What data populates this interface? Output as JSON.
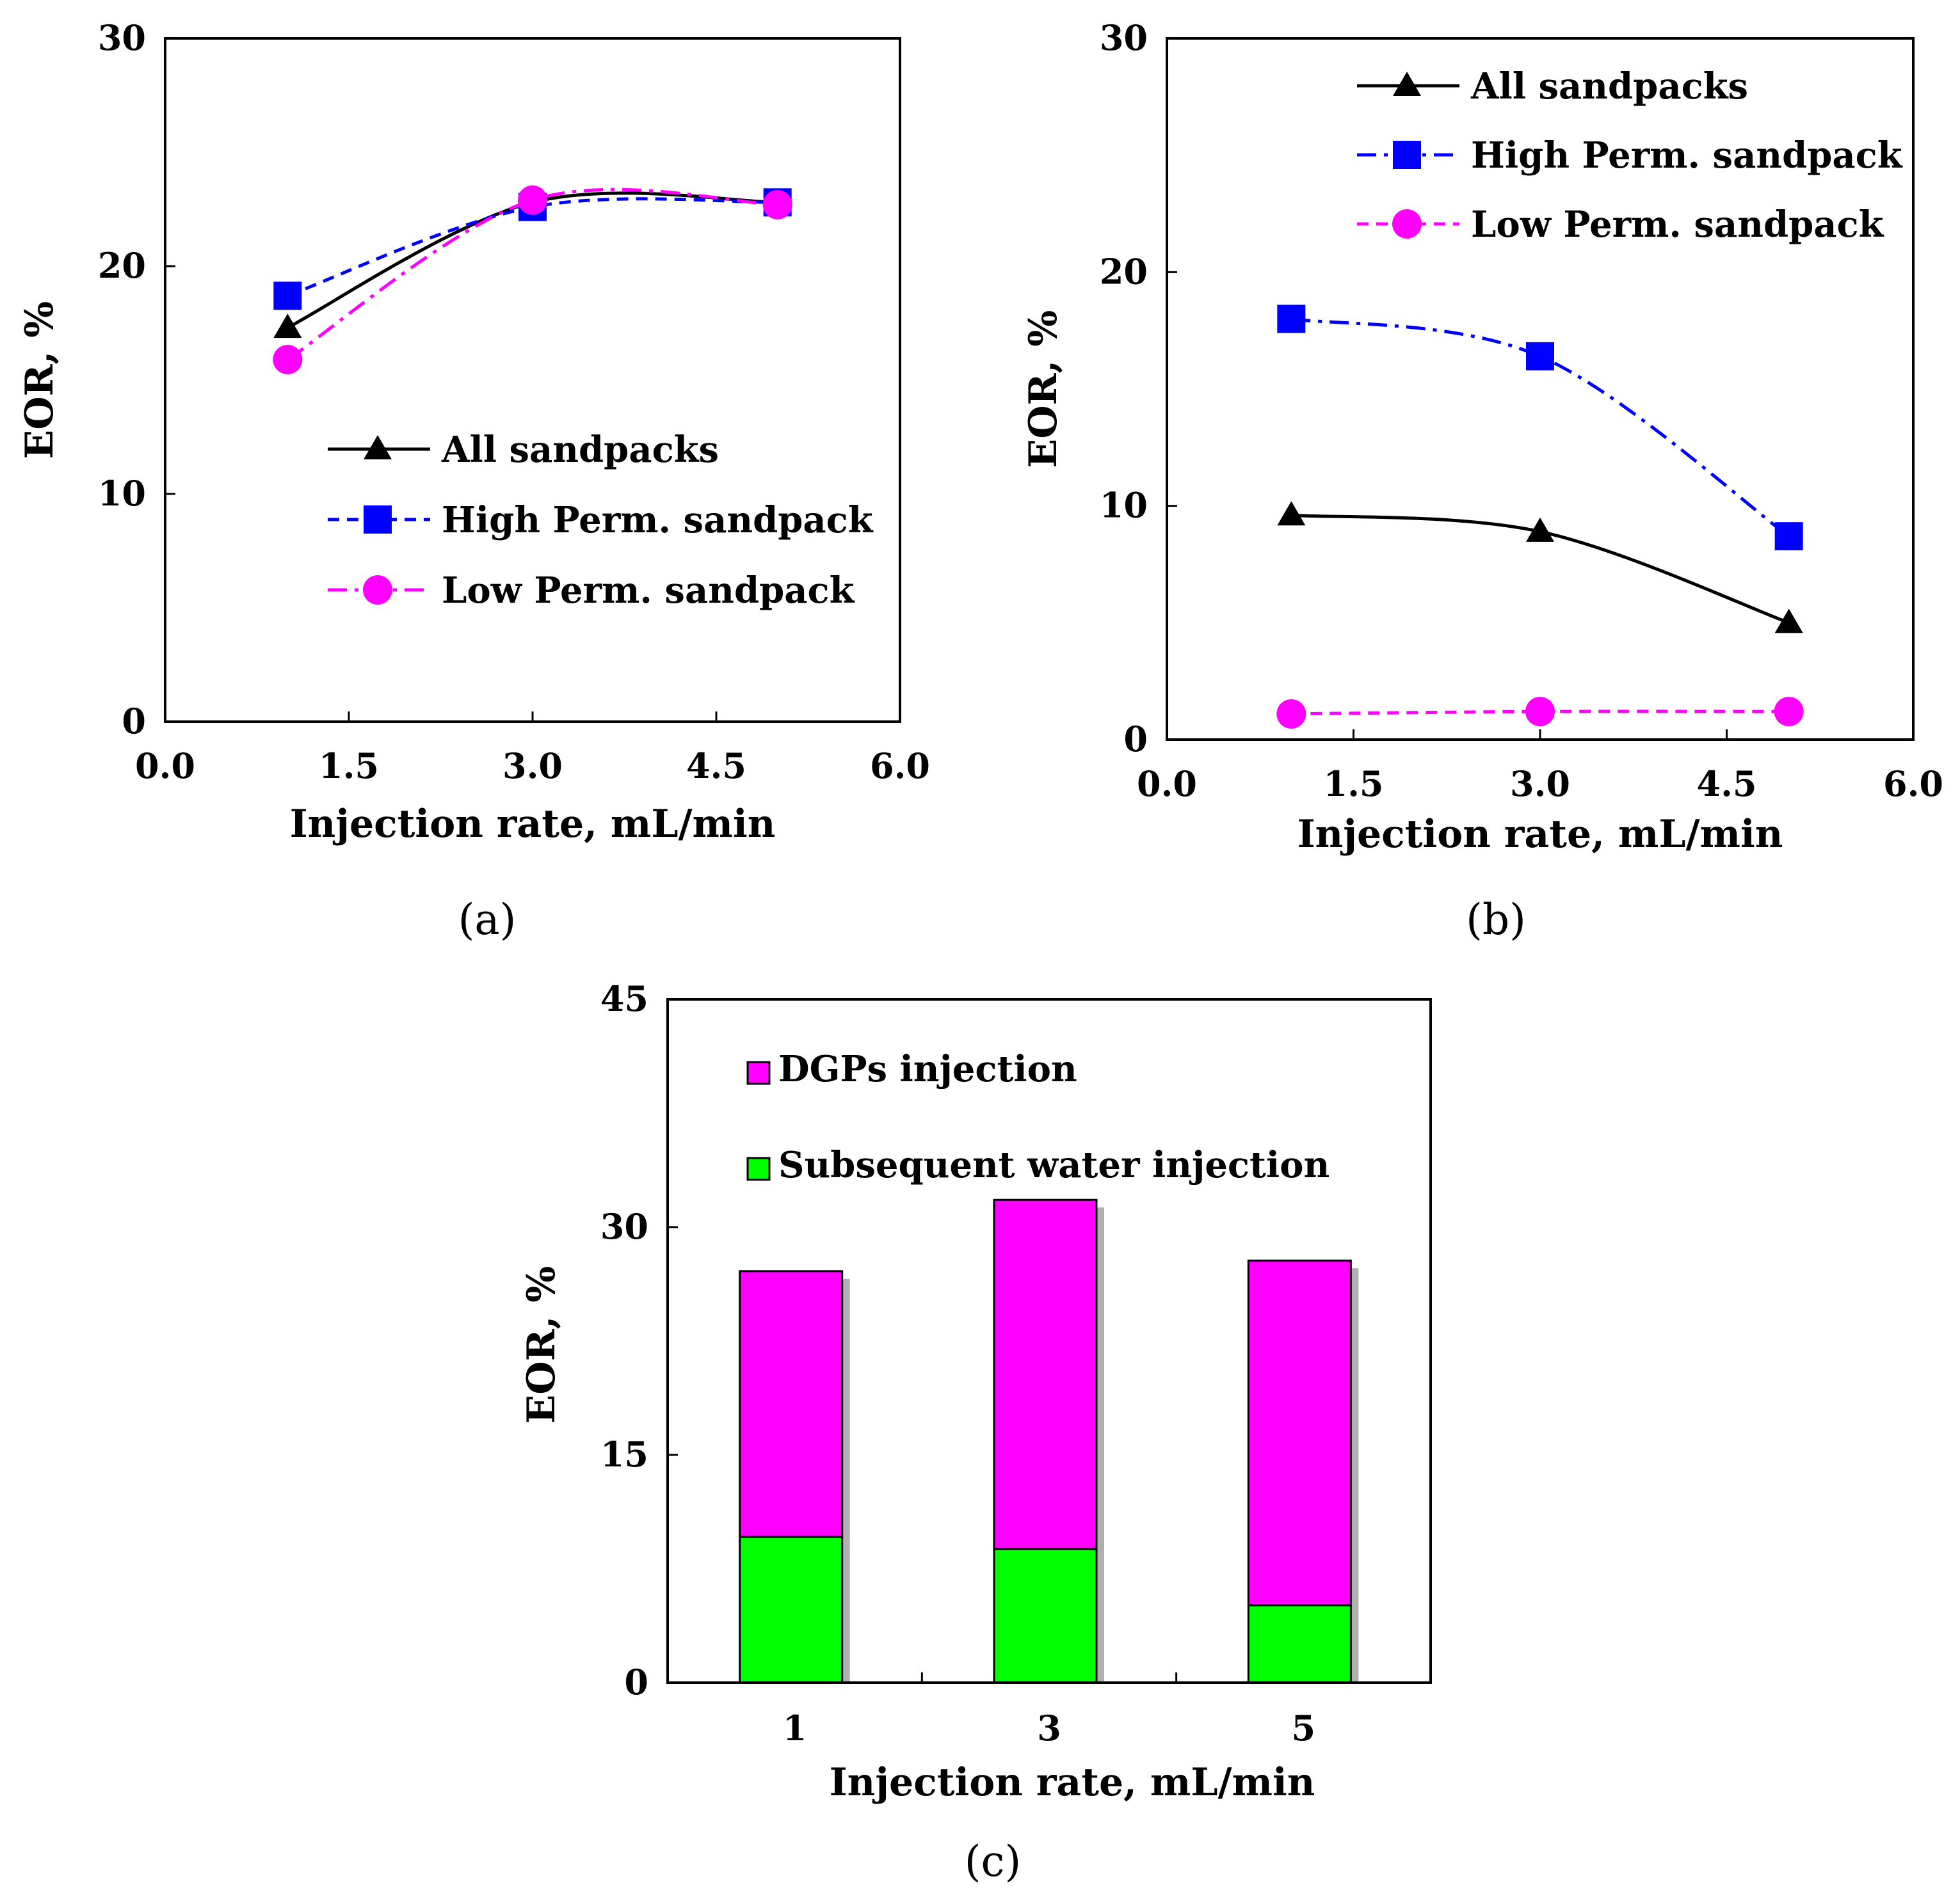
{
  "chart_data": [
    {
      "id": "a",
      "type": "line",
      "caption": "(a)",
      "xlabel": "Injection rate, mL/min",
      "ylabel": "EOR, %",
      "xlim": [
        0,
        6
      ],
      "ylim": [
        0,
        30
      ],
      "xticks": [
        "0.0",
        "1.5",
        "3.0",
        "4.5",
        "6.0"
      ],
      "yticks": [
        "0",
        "10",
        "20",
        "30"
      ],
      "legend_position": "center-right",
      "series": [
        {
          "name": "All sandpacks",
          "marker": "triangle",
          "color": "#000000",
          "dash": "solid",
          "x": [
            1,
            3,
            5
          ],
          "y": [
            17.3,
            22.8,
            22.8
          ]
        },
        {
          "name": "High Perm. sandpack",
          "marker": "square",
          "color": "#0000ff",
          "dash": "dashed",
          "x": [
            1,
            3,
            5
          ],
          "y": [
            18.7,
            22.6,
            22.8
          ]
        },
        {
          "name": "Low Perm. sandpack",
          "marker": "circle",
          "color": "#ff00ff",
          "dash": "dashdot",
          "x": [
            1,
            3,
            5
          ],
          "y": [
            15.9,
            22.9,
            22.7
          ]
        }
      ]
    },
    {
      "id": "b",
      "type": "line",
      "caption": "(b)",
      "xlabel": "Injection rate, mL/min",
      "ylabel": "EOR, %",
      "xlim": [
        0,
        6
      ],
      "ylim": [
        0,
        30
      ],
      "xticks": [
        "0.0",
        "1.5",
        "3.0",
        "4.5",
        "6.0"
      ],
      "yticks": [
        "0",
        "10",
        "20",
        "30"
      ],
      "legend_position": "top-right",
      "series": [
        {
          "name": "All sandpacks",
          "marker": "triangle",
          "color": "#000000",
          "dash": "solid",
          "x": [
            1,
            3,
            5
          ],
          "y": [
            9.6,
            8.9,
            5.0
          ]
        },
        {
          "name": "High Perm. sandpack",
          "marker": "square",
          "color": "#0000ff",
          "dash": "dashdot",
          "x": [
            1,
            3,
            5
          ],
          "y": [
            18.0,
            16.4,
            8.7
          ]
        },
        {
          "name": "Low Perm. sandpack",
          "marker": "circle",
          "color": "#ff00ff",
          "dash": "dashed",
          "x": [
            1,
            3,
            5
          ],
          "y": [
            1.1,
            1.2,
            1.2
          ]
        }
      ]
    },
    {
      "id": "c",
      "type": "bar",
      "stacked": true,
      "caption": "(c)",
      "xlabel": "Injection rate, mL/min",
      "ylabel": "EOR, %",
      "ylim": [
        0,
        45
      ],
      "yticks": [
        "0",
        "15",
        "30",
        "45"
      ],
      "categories": [
        "1",
        "3",
        "5"
      ],
      "legend_position": "top-left",
      "series": [
        {
          "name": "Subsequent water injection",
          "color": "#00ff00",
          "values": [
            9.6,
            8.8,
            5.1
          ]
        },
        {
          "name": "DGPs injection",
          "color": "#ff00ff",
          "values": [
            17.5,
            23.0,
            22.7
          ]
        }
      ]
    }
  ]
}
